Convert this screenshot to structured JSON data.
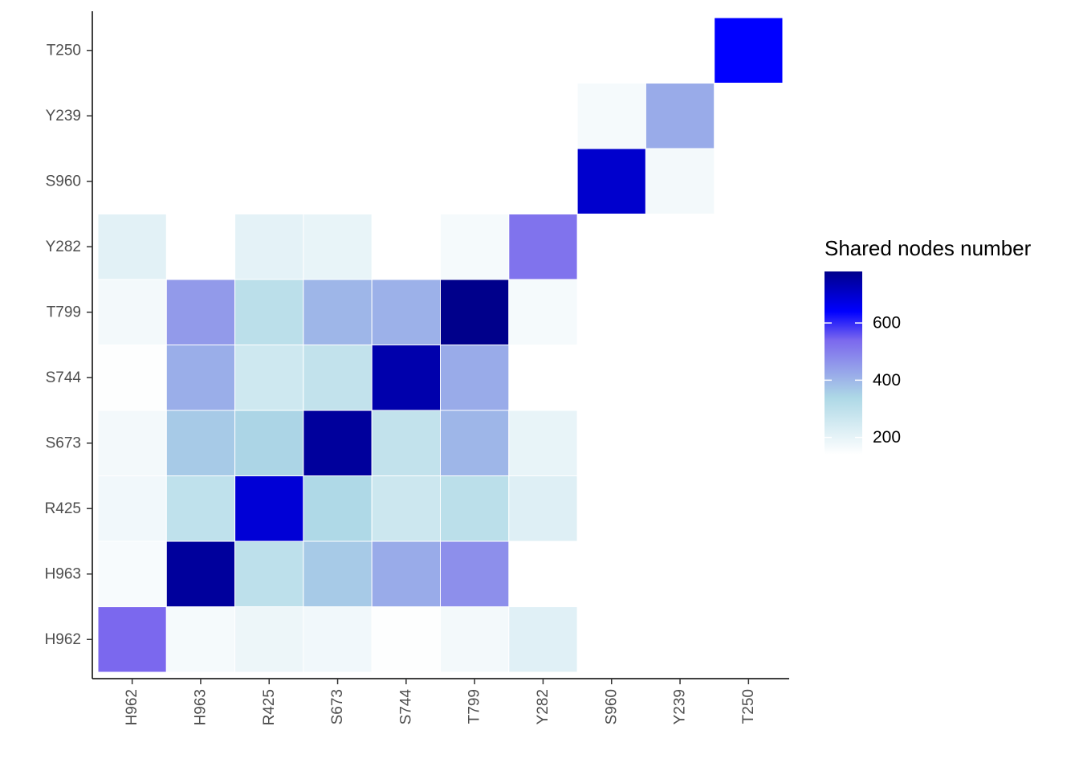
{
  "chart_data": {
    "type": "heatmap",
    "x_categories": [
      "H962",
      "H963",
      "R425",
      "S673",
      "S744",
      "T799",
      "Y282",
      "S960",
      "Y239",
      "T250"
    ],
    "y_categories": [
      "H962",
      "H963",
      "R425",
      "S673",
      "S744",
      "T799",
      "Y282",
      "S960",
      "Y239",
      "T250"
    ],
    "legend_title": "Shared nodes number",
    "legend_ticks": [
      200,
      400,
      600
    ],
    "value_range": [
      140,
      780
    ],
    "color_stops": [
      {
        "value": 140,
        "color": "#ffffff"
      },
      {
        "value": 340,
        "color": "#add8e6"
      },
      {
        "value": 540,
        "color": "#7b68ee"
      },
      {
        "value": 640,
        "color": "#0000ff"
      },
      {
        "value": 780,
        "color": "#00008b"
      }
    ],
    "legend_position": "right",
    "grid": false,
    "cells": [
      {
        "x": "H962",
        "y": "H962",
        "value": 540
      },
      {
        "x": "H963",
        "y": "H962",
        "value": 165
      },
      {
        "x": "R425",
        "y": "H962",
        "value": 185
      },
      {
        "x": "S673",
        "y": "H962",
        "value": 175
      },
      {
        "x": "S744",
        "y": "H962",
        "value": 145
      },
      {
        "x": "T799",
        "y": "H962",
        "value": 170
      },
      {
        "x": "Y282",
        "y": "H962",
        "value": 215
      },
      {
        "x": "H962",
        "y": "H963",
        "value": 160
      },
      {
        "x": "H963",
        "y": "H963",
        "value": 760
      },
      {
        "x": "R425",
        "y": "H963",
        "value": 300
      },
      {
        "x": "S673",
        "y": "H963",
        "value": 365
      },
      {
        "x": "S744",
        "y": "H963",
        "value": 420
      },
      {
        "x": "T799",
        "y": "H963",
        "value": 470
      },
      {
        "x": "H962",
        "y": "R425",
        "value": 175
      },
      {
        "x": "H963",
        "y": "R425",
        "value": 295
      },
      {
        "x": "R425",
        "y": "R425",
        "value": 690
      },
      {
        "x": "S673",
        "y": "R425",
        "value": 335
      },
      {
        "x": "S744",
        "y": "R425",
        "value": 265
      },
      {
        "x": "T799",
        "y": "R425",
        "value": 305
      },
      {
        "x": "Y282",
        "y": "R425",
        "value": 220
      },
      {
        "x": "H962",
        "y": "S673",
        "value": 170
      },
      {
        "x": "H963",
        "y": "S673",
        "value": 365
      },
      {
        "x": "R425",
        "y": "S673",
        "value": 345
      },
      {
        "x": "S673",
        "y": "S673",
        "value": 760
      },
      {
        "x": "S744",
        "y": "S673",
        "value": 290
      },
      {
        "x": "T799",
        "y": "S673",
        "value": 400
      },
      {
        "x": "Y282",
        "y": "S673",
        "value": 195
      },
      {
        "x": "H962",
        "y": "S744",
        "value": 145
      },
      {
        "x": "H963",
        "y": "S744",
        "value": 415
      },
      {
        "x": "R425",
        "y": "S744",
        "value": 260
      },
      {
        "x": "S673",
        "y": "S744",
        "value": 290
      },
      {
        "x": "S744",
        "y": "S744",
        "value": 740
      },
      {
        "x": "T799",
        "y": "S744",
        "value": 420
      },
      {
        "x": "H962",
        "y": "T799",
        "value": 170
      },
      {
        "x": "H963",
        "y": "T799",
        "value": 450
      },
      {
        "x": "R425",
        "y": "T799",
        "value": 305
      },
      {
        "x": "S673",
        "y": "T799",
        "value": 400
      },
      {
        "x": "S744",
        "y": "T799",
        "value": 410
      },
      {
        "x": "T799",
        "y": "T799",
        "value": 780
      },
      {
        "x": "Y282",
        "y": "T799",
        "value": 165
      },
      {
        "x": "H962",
        "y": "Y282",
        "value": 210
      },
      {
        "x": "R425",
        "y": "Y282",
        "value": 205
      },
      {
        "x": "S673",
        "y": "Y282",
        "value": 195
      },
      {
        "x": "T799",
        "y": "Y282",
        "value": 165
      },
      {
        "x": "Y282",
        "y": "Y282",
        "value": 520
      },
      {
        "x": "S960",
        "y": "S960",
        "value": 700
      },
      {
        "x": "Y239",
        "y": "S960",
        "value": 170
      },
      {
        "x": "S960",
        "y": "Y239",
        "value": 165
      },
      {
        "x": "Y239",
        "y": "Y239",
        "value": 420
      },
      {
        "x": "T250",
        "y": "T250",
        "value": 640
      }
    ]
  }
}
